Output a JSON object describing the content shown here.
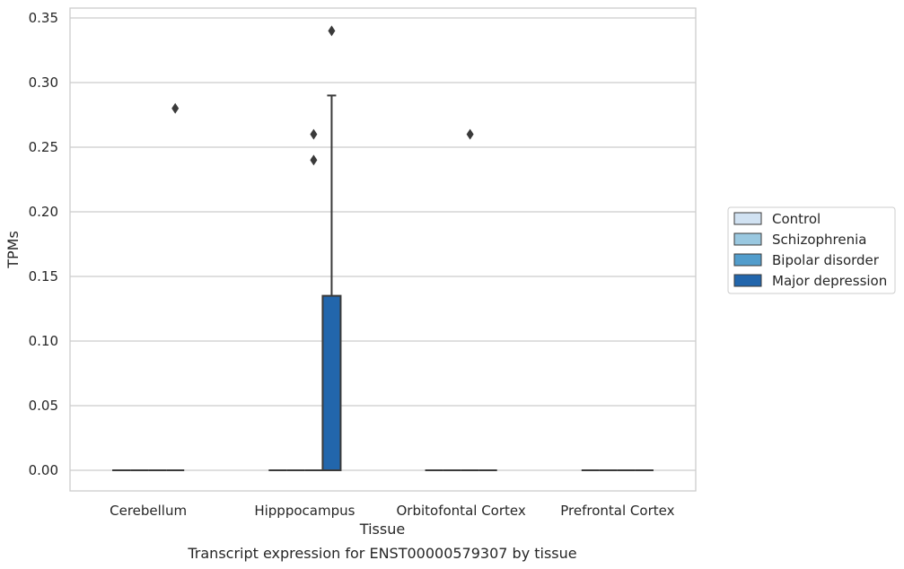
{
  "chart_data": {
    "type": "box",
    "title": "",
    "caption": "Transcript expression for ENST00000579307 by tissue",
    "xlabel": "Tissue",
    "ylabel": "TPMs",
    "ylim": [
      -0.017,
      0.357
    ],
    "yticks": [
      "0.00",
      "0.05",
      "0.10",
      "0.15",
      "0.20",
      "0.25",
      "0.30",
      "0.35"
    ],
    "ytick_values": [
      0,
      0.05,
      0.1,
      0.15,
      0.2,
      0.25,
      0.3,
      0.35
    ],
    "grid": "horizontal",
    "legend_position": "right",
    "categories": [
      "Cerebellum",
      "Hipppocampus",
      "Orbitofontal Cortex",
      "Prefrontal Cortex"
    ],
    "series": [
      {
        "name": "Control",
        "color": "#d1e2f2"
      },
      {
        "name": "Schizophrenia",
        "color": "#9ac8e0"
      },
      {
        "name": "Bipolar disorder",
        "color": "#529dcc"
      },
      {
        "name": "Major depression",
        "color": "#2266ac"
      }
    ],
    "boxes": [
      {
        "category": "Cerebellum",
        "series": "Control",
        "q1": 0,
        "median": 0,
        "q3": 0,
        "whisker_low": 0,
        "whisker_high": 0,
        "outliers": []
      },
      {
        "category": "Cerebellum",
        "series": "Schizophrenia",
        "q1": 0,
        "median": 0,
        "q3": 0,
        "whisker_low": 0,
        "whisker_high": 0,
        "outliers": []
      },
      {
        "category": "Cerebellum",
        "series": "Bipolar disorder",
        "q1": 0,
        "median": 0,
        "q3": 0,
        "whisker_low": 0,
        "whisker_high": 0,
        "outliers": []
      },
      {
        "category": "Cerebellum",
        "series": "Major depression",
        "q1": 0,
        "median": 0,
        "q3": 0,
        "whisker_low": 0,
        "whisker_high": 0,
        "outliers": [
          0.28
        ]
      },
      {
        "category": "Hipppocampus",
        "series": "Control",
        "q1": 0,
        "median": 0,
        "q3": 0,
        "whisker_low": 0,
        "whisker_high": 0,
        "outliers": []
      },
      {
        "category": "Hipppocampus",
        "series": "Schizophrenia",
        "q1": 0,
        "median": 0,
        "q3": 0,
        "whisker_low": 0,
        "whisker_high": 0,
        "outliers": []
      },
      {
        "category": "Hipppocampus",
        "series": "Bipolar disorder",
        "q1": 0,
        "median": 0,
        "q3": 0,
        "whisker_low": 0,
        "whisker_high": 0,
        "outliers": [
          0.24,
          0.26
        ]
      },
      {
        "category": "Hipppocampus",
        "series": "Major depression",
        "q1": 0,
        "median": 0,
        "q3": 0.135,
        "whisker_low": 0,
        "whisker_high": 0.29,
        "outliers": [
          0.34
        ]
      },
      {
        "category": "Orbitofontal Cortex",
        "series": "Control",
        "q1": 0,
        "median": 0,
        "q3": 0,
        "whisker_low": 0,
        "whisker_high": 0,
        "outliers": []
      },
      {
        "category": "Orbitofontal Cortex",
        "series": "Schizophrenia",
        "q1": 0,
        "median": 0,
        "q3": 0,
        "whisker_low": 0,
        "whisker_high": 0,
        "outliers": []
      },
      {
        "category": "Orbitofontal Cortex",
        "series": "Bipolar disorder",
        "q1": 0,
        "median": 0,
        "q3": 0,
        "whisker_low": 0,
        "whisker_high": 0,
        "outliers": [
          0.26
        ]
      },
      {
        "category": "Orbitofontal Cortex",
        "series": "Major depression",
        "q1": 0,
        "median": 0,
        "q3": 0,
        "whisker_low": 0,
        "whisker_high": 0,
        "outliers": []
      },
      {
        "category": "Prefrontal Cortex",
        "series": "Control",
        "q1": 0,
        "median": 0,
        "q3": 0,
        "whisker_low": 0,
        "whisker_high": 0,
        "outliers": []
      },
      {
        "category": "Prefrontal Cortex",
        "series": "Schizophrenia",
        "q1": 0,
        "median": 0,
        "q3": 0,
        "whisker_low": 0,
        "whisker_high": 0,
        "outliers": []
      },
      {
        "category": "Prefrontal Cortex",
        "series": "Bipolar disorder",
        "q1": 0,
        "median": 0,
        "q3": 0,
        "whisker_low": 0,
        "whisker_high": 0,
        "outliers": []
      },
      {
        "category": "Prefrontal Cortex",
        "series": "Major depression",
        "q1": 0,
        "median": 0,
        "q3": 0,
        "whisker_low": 0,
        "whisker_high": 0,
        "outliers": []
      }
    ]
  }
}
